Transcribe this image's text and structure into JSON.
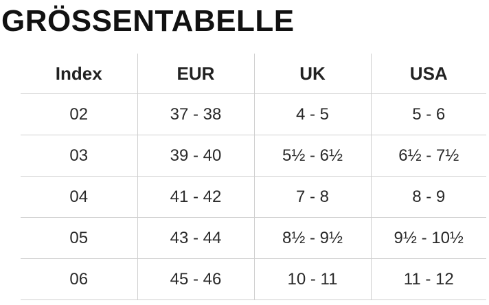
{
  "title": "GRÖSSENTABELLE",
  "table": {
    "header": [
      "Index",
      "EUR",
      "UK",
      "USA"
    ],
    "rows": [
      [
        "02",
        "37 - 38",
        "4 - 5",
        "5 - 6"
      ],
      [
        "03",
        "39 - 40",
        "5½ - 6½",
        "6½ - 7½"
      ],
      [
        "04",
        "41 - 42",
        "7 - 8",
        "8 - 9"
      ],
      [
        "05",
        "43 - 44",
        "8½ - 9½",
        "9½ - 10½"
      ],
      [
        "06",
        "45 - 46",
        "10 - 11",
        "11 - 12"
      ]
    ]
  }
}
